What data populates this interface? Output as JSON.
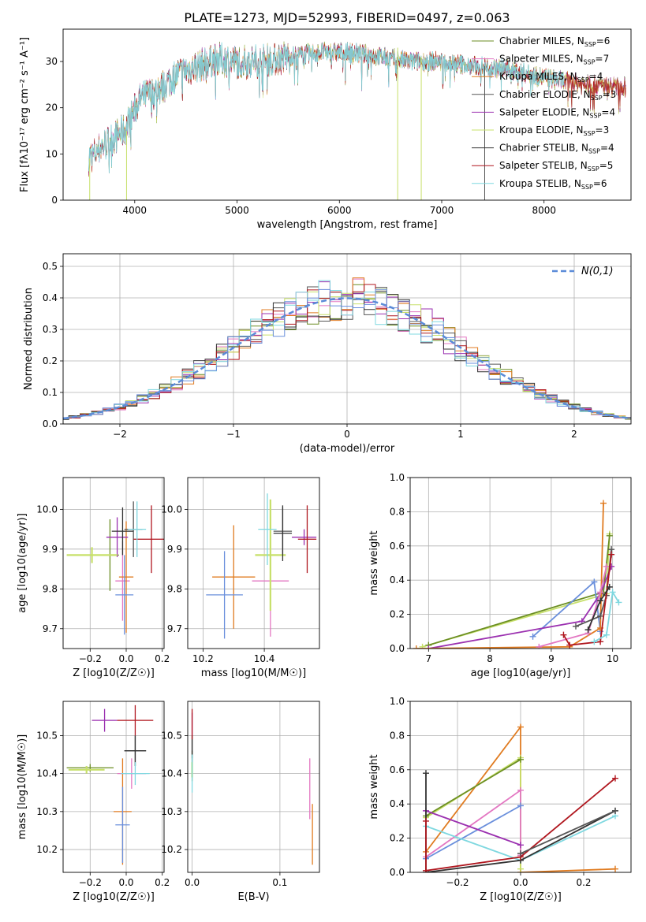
{
  "title": "PLATE=1273, MJD=52993, FIBERID=0497, z=0.063",
  "legend_models": [
    {
      "base": "Chabrier MILES, N",
      "sub": "SSP",
      "val": "=6",
      "color": "#6b8e23"
    },
    {
      "base": "Salpeter MILES, N",
      "sub": "SSP",
      "val": "=7",
      "color": "#e377c2"
    },
    {
      "base": "Kroupa MILES, N",
      "sub": "SSP",
      "val": "=4",
      "color": "#e07b20"
    },
    {
      "base": "Chabrier ELODIE, N",
      "sub": "SSP",
      "val": "=3",
      "color": "#555555"
    },
    {
      "base": "Salpeter ELODIE, N",
      "sub": "SSP",
      "val": "=4",
      "color": "#9b30b0"
    },
    {
      "base": "Kroupa ELODIE, N",
      "sub": "SSP",
      "val": "=3",
      "color": "#c7e06a"
    },
    {
      "base": "Chabrier STELIB, N",
      "sub": "SSP",
      "val": "=4",
      "color": "#333333"
    },
    {
      "base": "Salpeter STELIB, N",
      "sub": "SSP",
      "val": "=5",
      "color": "#b0171f"
    },
    {
      "base": "Kroupa STELIB, N",
      "sub": "SSP",
      "val": "=6",
      "color": "#7fd8e0"
    }
  ],
  "series_colors": [
    "#6b8e23",
    "#e377c2",
    "#e07b20",
    "#555555",
    "#9b30b0",
    "#c7e06a",
    "#333333",
    "#b0171f",
    "#7fd8e0",
    "#6a8fdc"
  ],
  "chart_data": [
    {
      "type": "line",
      "id": "spectrum",
      "xlabel": "wavelength [Angstrom, rest frame]",
      "ylabel": "Flux [fλ10⁻¹⁷ erg cm⁻² s⁻¹ A⁻¹]",
      "xlim": [
        3300,
        8850
      ],
      "ylim": [
        0,
        37
      ],
      "xticks": [
        4000,
        5000,
        6000,
        7000,
        8000
      ],
      "yticks": [
        0,
        10,
        20,
        30
      ],
      "continuum": {
        "x": [
          3550,
          3700,
          3900,
          4050,
          4250,
          4400,
          4600,
          4800,
          5000,
          5200,
          5500,
          5800,
          6100,
          6400,
          6700,
          7000,
          7300,
          7600,
          8000,
          8400,
          8800
        ],
        "y": [
          9,
          12,
          15,
          22,
          24,
          27,
          29,
          30.5,
          30,
          30,
          31,
          32,
          32,
          31,
          30,
          30,
          29,
          28.5,
          26.5,
          25,
          24.5
        ]
      }
    },
    {
      "type": "bar",
      "id": "residuals",
      "xlabel": "(data-model)/error",
      "ylabel": "Normed distribution",
      "xlim": [
        -2.5,
        2.5
      ],
      "ylim": [
        0,
        0.54
      ],
      "xticks": [
        -2,
        -1,
        0,
        1,
        2
      ],
      "yticks": [
        0.0,
        0.1,
        0.2,
        0.3,
        0.4,
        0.5
      ],
      "legend": "N(0,1)",
      "bin_width": 0.1
    },
    {
      "type": "scatter",
      "id": "age_vs_Z",
      "xlabel": "Z [log10(Z/Z☉)]",
      "ylabel": "age  [log10(age/yr)]",
      "xlim": [
        -0.35,
        0.21
      ],
      "ylim": [
        9.65,
        10.08
      ],
      "xticks": [
        -0.2,
        0.0,
        0.2
      ],
      "yticks": [
        9.7,
        9.8,
        9.9,
        10.0
      ],
      "points": [
        {
          "x": -0.09,
          "y": 9.885,
          "xerr": 0.05,
          "yerr": 0.09,
          "c": 0
        },
        {
          "x": -0.02,
          "y": 9.82,
          "xerr": 0.04,
          "yerr": 0.1,
          "c": 1
        },
        {
          "x": 0.0,
          "y": 9.83,
          "xerr": 0.04,
          "yerr": 0.14,
          "c": 2
        },
        {
          "x": 0.04,
          "y": 9.95,
          "xerr": 0.05,
          "yerr": 0.07,
          "c": 3
        },
        {
          "x": -0.05,
          "y": 9.93,
          "xerr": 0.06,
          "yerr": 0.05,
          "c": 4
        },
        {
          "x": -0.19,
          "y": 9.885,
          "xerr": 0.14,
          "yerr": 0.02,
          "c": 5
        },
        {
          "x": -0.02,
          "y": 9.945,
          "xerr": 0.06,
          "yerr": 0.06,
          "c": 6
        },
        {
          "x": 0.14,
          "y": 9.925,
          "xerr": 0.1,
          "yerr": 0.085,
          "c": 7
        },
        {
          "x": 0.06,
          "y": 9.95,
          "xerr": 0.05,
          "yerr": 0.07,
          "c": 8
        },
        {
          "x": -0.01,
          "y": 9.785,
          "xerr": 0.05,
          "yerr": 0.1,
          "c": 9
        }
      ]
    },
    {
      "type": "scatter",
      "id": "age_vs_mass",
      "xlabel": "mass [log10(M/M☉)]",
      "ylabel": "",
      "xlim": [
        10.15,
        10.58
      ],
      "ylim": [
        9.65,
        10.08
      ],
      "xticks": [
        10.2,
        10.4
      ],
      "yticks": [
        9.7,
        9.8,
        9.9,
        10.0
      ],
      "points": [
        {
          "x": 10.42,
          "y": 9.885,
          "xerr": 0.04,
          "yerr": 0.1,
          "c": 0
        },
        {
          "x": 10.42,
          "y": 9.82,
          "xerr": 0.06,
          "yerr": 0.14,
          "c": 1
        },
        {
          "x": 10.3,
          "y": 9.83,
          "xerr": 0.07,
          "yerr": 0.13,
          "c": 2
        },
        {
          "x": 10.46,
          "y": 9.945,
          "xerr": 0.03,
          "yerr": 0.06,
          "c": 3
        },
        {
          "x": 10.53,
          "y": 9.93,
          "xerr": 0.04,
          "yerr": 0.02,
          "c": 4
        },
        {
          "x": 10.42,
          "y": 9.885,
          "xerr": 0.05,
          "yerr": 0.14,
          "c": 5
        },
        {
          "x": 10.46,
          "y": 9.94,
          "xerr": 0.03,
          "yerr": 0.07,
          "c": 6
        },
        {
          "x": 10.54,
          "y": 9.925,
          "xerr": 0.03,
          "yerr": 0.085,
          "c": 7
        },
        {
          "x": 10.41,
          "y": 9.95,
          "xerr": 0.03,
          "yerr": 0.09,
          "c": 8
        },
        {
          "x": 10.27,
          "y": 9.785,
          "xerr": 0.06,
          "yerr": 0.11,
          "c": 9
        }
      ]
    },
    {
      "type": "line",
      "id": "weight_vs_age",
      "xlabel": "age  [log10(age/yr)]",
      "ylabel": "mass weight",
      "xlim": [
        6.7,
        10.3
      ],
      "ylim": [
        0,
        1
      ],
      "xticks": [
        7,
        8,
        9,
        10
      ],
      "yticks": [
        0.0,
        0.2,
        0.4,
        0.6,
        0.8,
        1.0
      ],
      "series": [
        {
          "c": 5,
          "x": [
            6.9,
            9.9,
            9.95
          ],
          "y": [
            0.01,
            0.32,
            0.67
          ]
        },
        {
          "c": 0,
          "x": [
            7.0,
            9.85,
            9.95
          ],
          "y": [
            0.02,
            0.33,
            0.66
          ]
        },
        {
          "c": 9,
          "x": [
            8.7,
            9.7,
            9.8
          ],
          "y": [
            0.07,
            0.39,
            0.1
          ]
        },
        {
          "c": 4,
          "x": [
            7.0,
            9.5,
            9.8,
            9.98
          ],
          "y": [
            0.0,
            0.16,
            0.32,
            0.48
          ]
        },
        {
          "c": 2,
          "x": [
            6.8,
            9.3,
            9.8,
            9.85
          ],
          "y": [
            0.0,
            0.01,
            0.12,
            0.85
          ]
        },
        {
          "c": 1,
          "x": [
            8.8,
            9.6,
            9.8,
            9.9
          ],
          "y": [
            0.01,
            0.09,
            0.33,
            0.48
          ]
        },
        {
          "c": 3,
          "x": [
            9.4,
            9.8,
            9.9,
            9.98
          ],
          "y": [
            0.13,
            0.19,
            0.31,
            0.58
          ]
        },
        {
          "c": 7,
          "x": [
            9.2,
            9.3,
            9.8,
            9.98
          ],
          "y": [
            0.08,
            0.02,
            0.04,
            0.55
          ]
        },
        {
          "c": 8,
          "x": [
            9.7,
            9.9,
            10.0,
            10.1
          ],
          "y": [
            0.04,
            0.08,
            0.33,
            0.27
          ]
        },
        {
          "c": 6,
          "x": [
            9.6,
            9.8,
            9.95
          ],
          "y": [
            0.11,
            0.28,
            0.36
          ]
        }
      ]
    },
    {
      "type": "scatter",
      "id": "mass_vs_Z",
      "xlabel": "Z [log10(Z/Z☉)]",
      "ylabel": "mass [log10(M/M☉)]",
      "xlim": [
        -0.35,
        0.21
      ],
      "ylim": [
        10.14,
        10.59
      ],
      "xticks": [
        -0.2,
        0.0,
        0.2
      ],
      "yticks": [
        10.2,
        10.3,
        10.4,
        10.5
      ],
      "points": [
        {
          "x": -0.2,
          "y": 10.415,
          "xerr": 0.13,
          "yerr": 0.01,
          "c": 0
        },
        {
          "x": 0.03,
          "y": 10.4,
          "xerr": 0.08,
          "yerr": 0.04,
          "c": 1
        },
        {
          "x": -0.02,
          "y": 10.3,
          "xerr": 0.05,
          "yerr": 0.14,
          "c": 2
        },
        {
          "x": 0.05,
          "y": 10.46,
          "xerr": 0.06,
          "yerr": 0.04,
          "c": 3
        },
        {
          "x": -0.12,
          "y": 10.54,
          "xerr": 0.07,
          "yerr": 0.03,
          "c": 4
        },
        {
          "x": -0.22,
          "y": 10.41,
          "xerr": 0.1,
          "yerr": 0.01,
          "c": 5
        },
        {
          "x": 0.05,
          "y": 10.46,
          "xerr": 0.06,
          "yerr": 0.04,
          "c": 6
        },
        {
          "x": 0.05,
          "y": 10.54,
          "xerr": 0.1,
          "yerr": 0.04,
          "c": 7
        },
        {
          "x": 0.05,
          "y": 10.4,
          "xerr": 0.08,
          "yerr": 0.03,
          "c": 8
        },
        {
          "x": -0.02,
          "y": 10.265,
          "xerr": 0.04,
          "yerr": 0.1,
          "c": 9
        }
      ]
    },
    {
      "type": "scatter",
      "id": "mass_vs_ebv",
      "xlabel": "E(B-V)",
      "ylabel": "",
      "xlim": [
        -0.005,
        0.145
      ],
      "ylim": [
        10.14,
        10.59
      ],
      "xticks": [
        0.0,
        0.1
      ],
      "yticks": [
        10.2,
        10.3,
        10.4,
        10.5
      ],
      "points": [
        {
          "x": 0.0,
          "y": 10.42,
          "xerr": 0.0,
          "yerr": 0.04,
          "c": 0
        },
        {
          "x": 0.134,
          "y": 10.36,
          "xerr": 0.0,
          "yerr": 0.08,
          "c": 1
        },
        {
          "x": 0.137,
          "y": 10.24,
          "xerr": 0.0,
          "yerr": 0.08,
          "c": 2
        },
        {
          "x": 0.0,
          "y": 10.46,
          "xerr": 0.0,
          "yerr": 0.04,
          "c": 3
        },
        {
          "x": 0.0,
          "y": 10.53,
          "xerr": 0.0,
          "yerr": 0.03,
          "c": 4
        },
        {
          "x": 0.0,
          "y": 10.41,
          "xerr": 0.0,
          "yerr": 0.02,
          "c": 5
        },
        {
          "x": 0.0,
          "y": 10.47,
          "xerr": 0.0,
          "yerr": 0.03,
          "c": 6
        },
        {
          "x": 0.0,
          "y": 10.53,
          "xerr": 0.0,
          "yerr": 0.04,
          "c": 7
        },
        {
          "x": 0.0,
          "y": 10.4,
          "xerr": 0.0,
          "yerr": 0.05,
          "c": 8
        }
      ]
    },
    {
      "type": "line",
      "id": "weight_vs_Z",
      "xlabel": "Z [log10(Z/Z☉)]",
      "ylabel": "mass weight",
      "xlim": [
        -0.35,
        0.35
      ],
      "ylim": [
        0,
        1
      ],
      "xticks": [
        -0.2,
        0.0,
        0.2
      ],
      "yticks": [
        0.0,
        0.2,
        0.4,
        0.6,
        0.8,
        1.0
      ],
      "series": [
        {
          "c": 2,
          "x": [
            -0.3,
            0.0,
            0.0,
            0.3
          ],
          "y": [
            0.12,
            0.85,
            0.0,
            0.02
          ]
        },
        {
          "c": 5,
          "x": [
            -0.3,
            0.0,
            0.0
          ],
          "y": [
            0.32,
            0.67,
            0.02
          ]
        },
        {
          "c": 0,
          "x": [
            -0.3,
            0.0
          ],
          "y": [
            0.33,
            0.66
          ]
        },
        {
          "c": 1,
          "x": [
            -0.3,
            0.0,
            0.0
          ],
          "y": [
            0.09,
            0.48,
            0.1
          ]
        },
        {
          "c": 9,
          "x": [
            -0.3,
            0.0
          ],
          "y": [
            0.08,
            0.39
          ]
        },
        {
          "c": 4,
          "x": [
            -0.3,
            0.0
          ],
          "y": [
            0.36,
            0.16
          ]
        },
        {
          "c": 8,
          "x": [
            -0.3,
            0.0,
            0.3
          ],
          "y": [
            0.27,
            0.07,
            0.33
          ]
        },
        {
          "c": 6,
          "x": [
            -0.3,
            -0.3,
            0.0,
            0.3
          ],
          "y": [
            0.58,
            0.0,
            0.07,
            0.36
          ]
        },
        {
          "c": 7,
          "x": [
            -0.3,
            -0.3,
            0.0,
            0.3
          ],
          "y": [
            0.3,
            0.01,
            0.09,
            0.55
          ]
        },
        {
          "c": 3,
          "x": [
            0.0,
            0.3
          ],
          "y": [
            0.11,
            0.36
          ]
        }
      ]
    }
  ]
}
